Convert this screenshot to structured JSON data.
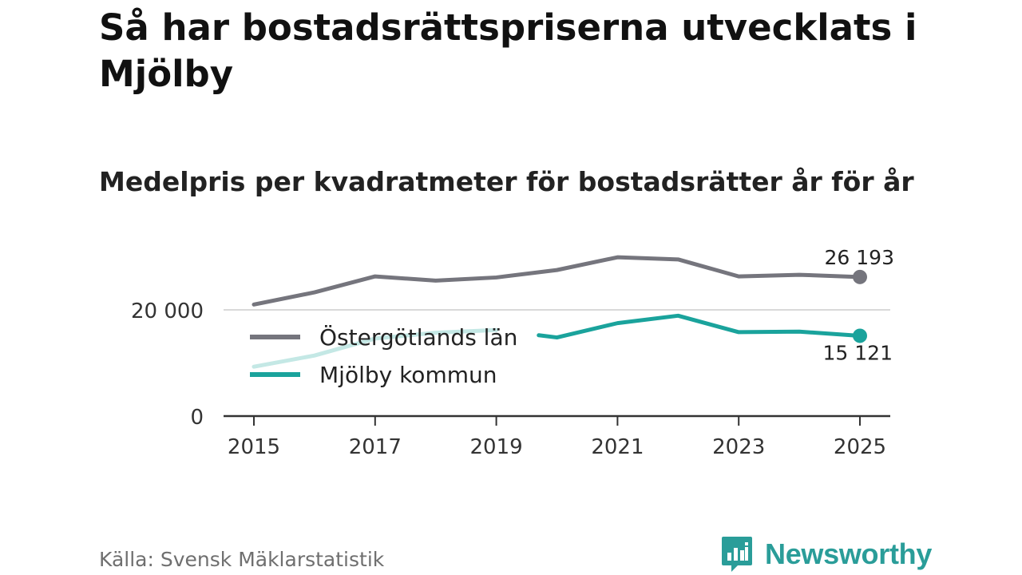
{
  "title": "Så har bostadsrättspriserna utvecklats i Mjölby",
  "subtitle": "Medelpris per kvadratmeter för bostadsrätter år för år",
  "source": "Källa: Svensk Mäklarstatistik",
  "brand": "Newsworthy",
  "colors": {
    "lan": "#75757d",
    "kommun": "#1aa39c",
    "kommun_faded": "#c4e8e5",
    "grid": "#d9d9d9",
    "axis": "#333333"
  },
  "chart_data": {
    "type": "line",
    "title": "Så har bostadsrättspriserna utvecklats i Mjölby",
    "subtitle": "Medelpris per kvadratmeter för bostadsrätter år för år",
    "xlabel": "",
    "ylabel": "",
    "x": [
      2015,
      2016,
      2017,
      2018,
      2019,
      2020,
      2021,
      2022,
      2023,
      2024,
      2025
    ],
    "x_ticks": [
      "2015",
      "2017",
      "2019",
      "2021",
      "2023",
      "2025"
    ],
    "y_ticks": [
      {
        "value": 0,
        "label": "0"
      },
      {
        "value": 20000,
        "label": "20 000"
      }
    ],
    "ylim": [
      0,
      32000
    ],
    "legend": "top-left",
    "series": [
      {
        "name": "Östergötlands län",
        "color": "#75757d",
        "values": [
          21000,
          23300,
          26300,
          25500,
          26100,
          27500,
          29900,
          29500,
          26300,
          26600,
          26193
        ],
        "end_label": "26 193"
      },
      {
        "name": "Mjölby kommun",
        "color": "#1aa39c",
        "values": [
          9300,
          11400,
          14600,
          15700,
          16200,
          14800,
          17500,
          18900,
          15800,
          15900,
          15121
        ],
        "end_label": "15 121"
      }
    ]
  }
}
